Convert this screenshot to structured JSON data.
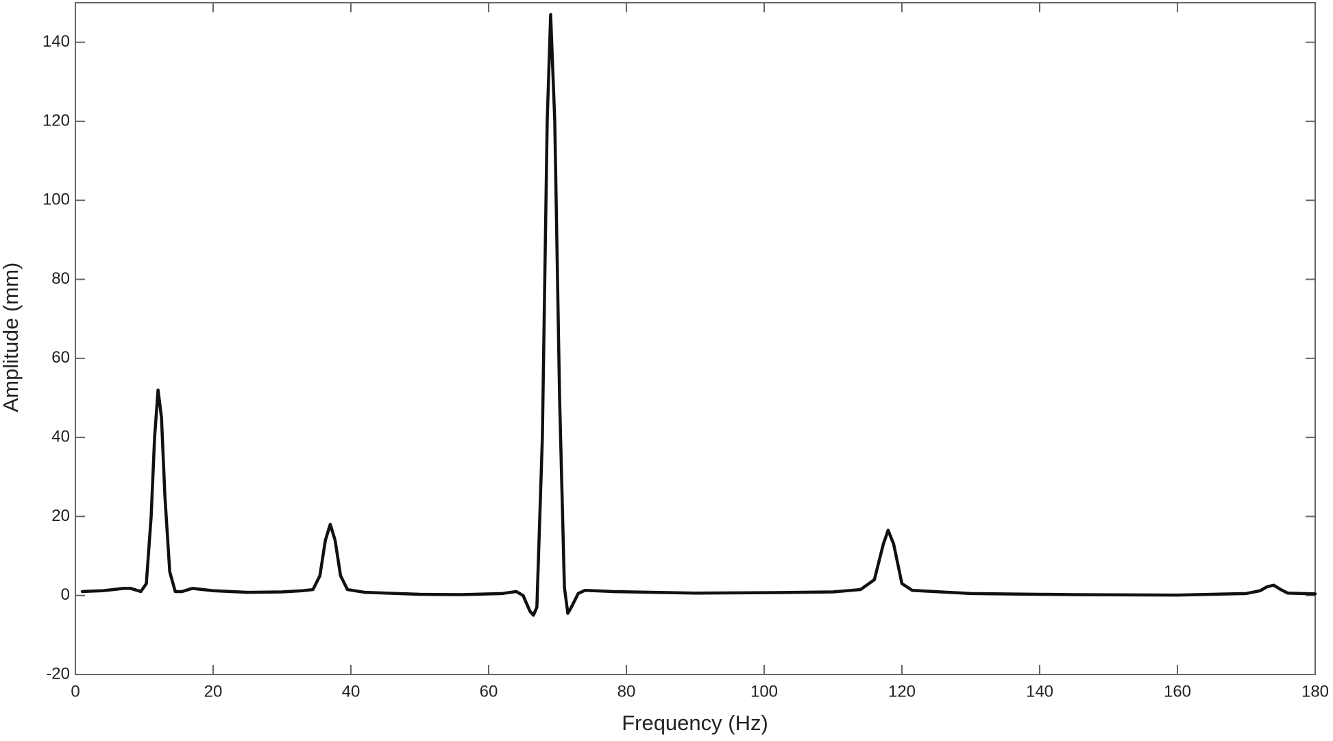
{
  "chart_data": {
    "type": "line",
    "xlabel": "Frequency (Hz)",
    "ylabel": "Amplitude (mm)",
    "x": [
      1,
      4,
      7,
      8,
      9.5,
      10.3,
      11,
      11.5,
      12,
      12.5,
      13,
      13.7,
      14.5,
      15.5,
      17,
      20,
      25,
      30,
      33,
      34.5,
      35.5,
      36.3,
      37,
      37.7,
      38.5,
      39.5,
      42,
      50,
      56,
      62,
      64,
      65,
      66,
      66.5,
      67,
      67.8,
      68.5,
      69,
      69.6,
      70.3,
      71,
      71.5,
      72,
      73,
      74,
      78,
      90,
      100,
      110,
      114,
      116,
      117.3,
      118,
      118.8,
      120,
      121.5,
      130,
      145,
      160,
      170,
      172,
      173,
      174,
      175,
      176,
      180
    ],
    "series": [
      {
        "name": "Amplitude",
        "color": "#111111",
        "values": [
          1,
          1.2,
          1.8,
          1.8,
          1,
          3,
          20,
          40,
          52,
          45,
          25,
          6,
          1,
          1,
          1.8,
          1.2,
          0.8,
          0.9,
          1.2,
          1.5,
          5,
          14,
          18,
          14,
          5,
          1.5,
          0.8,
          0.3,
          0.2,
          0.5,
          1,
          0,
          -4,
          -5,
          -3,
          40,
          120,
          147,
          120,
          50,
          2,
          -4.5,
          -3,
          0.5,
          1.3,
          1,
          0.6,
          0.7,
          0.9,
          1.5,
          4,
          13,
          16.5,
          13,
          3,
          1.3,
          0.5,
          0.2,
          0.1,
          0.5,
          1.2,
          2.2,
          2.6,
          1.5,
          0.6,
          0.4
        ]
      }
    ],
    "xlim": [
      0,
      180
    ],
    "xticks": [
      0,
      20,
      40,
      60,
      80,
      100,
      120,
      140,
      160,
      180
    ],
    "ylim": [
      -20,
      150
    ],
    "yticks": [
      -20,
      0,
      20,
      40,
      60,
      80,
      100,
      120,
      140
    ],
    "grid": false
  }
}
